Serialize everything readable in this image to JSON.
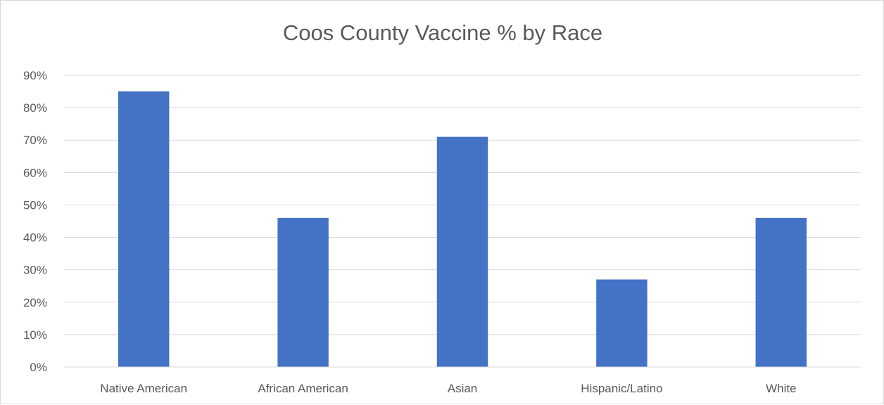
{
  "chart_data": {
    "type": "bar",
    "title": "Coos County Vaccine % by Race",
    "xlabel": "",
    "ylabel": "",
    "categories": [
      "Native American",
      "African American",
      "Asian",
      "Hispanic/Latino",
      "White"
    ],
    "values": [
      85,
      46,
      71,
      27,
      46
    ],
    "value_format": "percent",
    "ylim": [
      0,
      90
    ],
    "yticks": [
      "0%",
      "10%",
      "20%",
      "30%",
      "40%",
      "50%",
      "60%",
      "70%",
      "80%",
      "90%"
    ],
    "grid": true,
    "legend": "none",
    "bar_color": "#4472c4",
    "grid_color": "#d9d9d9",
    "text_color": "#595959"
  }
}
